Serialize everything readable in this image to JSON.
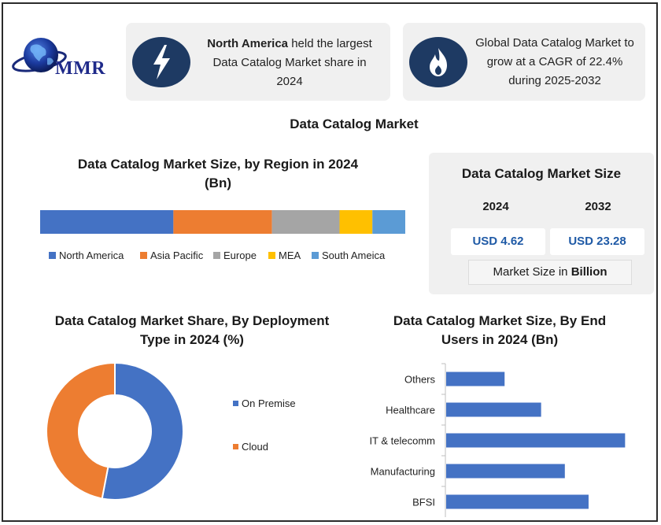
{
  "brand": {
    "logo_text": "MMR"
  },
  "cards": [
    {
      "icon": "lightning-bolt-icon",
      "text_bold": "North America",
      "text_rest": " held the largest Data Catalog Market share in 2024"
    },
    {
      "icon": "flame-icon",
      "text": "Global Data Catalog Market to grow at a CAGR of 22.4% during 2025-2032"
    }
  ],
  "main_title": "Data Catalog Market",
  "market_size": {
    "title": "Data Catalog Market Size",
    "year1": "2024",
    "year2": "2032",
    "value1": "USD 4.62",
    "value2": "USD 23.28",
    "unit_prefix": "Market Size in ",
    "unit_bold": "Billion"
  },
  "colors": {
    "north_america": "#4472c4",
    "asia_pacific": "#ed7d31",
    "europe": "#a5a5a5",
    "mea": "#ffc000",
    "south_america": "#5b9bd5",
    "on_premise": "#4472c4",
    "cloud": "#ed7d31",
    "bar": "#4472c4",
    "card_icon_bg": "#1e3a63"
  },
  "chart_data": [
    {
      "type": "bar",
      "stacked": true,
      "orientation": "horizontal",
      "title": "Data Catalog Market Size, by Region in 2024 (Bn)",
      "series": [
        {
          "name": "North America",
          "values": [
            36.5
          ]
        },
        {
          "name": "Asia Pacific",
          "values": [
            27.0
          ]
        },
        {
          "name": "Europe",
          "values": [
            18.5
          ]
        },
        {
          "name": "MEA",
          "values": [
            9.0
          ]
        },
        {
          "name": "South Ameica",
          "values": [
            9.0
          ]
        }
      ],
      "legend": "bottom"
    },
    {
      "type": "pie",
      "donut": true,
      "title": "Data Catalog Market Share, By Deployment Type in 2024 (%)",
      "categories": [
        "On Premise",
        "Cloud"
      ],
      "values": [
        53,
        47
      ],
      "legend": "right"
    },
    {
      "type": "bar",
      "orientation": "horizontal",
      "title": "Data Catalog Market Size, By End Users in 2024 (Bn)",
      "categories": [
        "Others",
        "Healthcare",
        "IT & telecomm",
        "Manufacturing",
        "BFSI"
      ],
      "values": [
        0.32,
        0.52,
        0.98,
        0.65,
        0.78
      ],
      "xlim": [
        0,
        1.0
      ]
    }
  ]
}
